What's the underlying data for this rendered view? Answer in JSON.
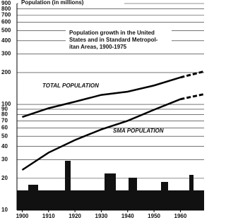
{
  "chart_data": {
    "type": "line",
    "y_label": "Population (in millions)",
    "annotation": [
      "Population growth in the United",
      "States and in Standard Metropol-",
      "itan Areas, 1900-1975"
    ],
    "x": [
      1900,
      1910,
      1920,
      1930,
      1940,
      1950,
      1960,
      1969
    ],
    "series": [
      {
        "name": "TOTAL POPULATION",
        "color": "#000",
        "dash": false,
        "values": [
          76,
          92,
          106,
          123,
          132,
          151,
          180,
          null
        ]
      },
      {
        "name": "SMA POPULATION",
        "color": "#000",
        "dash": false,
        "values": [
          24,
          35,
          46,
          58,
          70,
          89,
          112,
          null
        ]
      },
      {
        "color": "#000",
        "dash": true,
        "values": [
          null,
          null,
          null,
          null,
          null,
          null,
          180,
          205
        ]
      },
      {
        "color": "#000",
        "dash": true,
        "values": [
          null,
          null,
          null,
          null,
          null,
          null,
          112,
          125
        ]
      }
    ],
    "log_scale": true,
    "grid": true,
    "xlim": [
      1898,
      1969
    ],
    "xticks": [
      1900,
      1910,
      1920,
      1930,
      1940,
      1950,
      1960
    ],
    "ylim": [
      10,
      900
    ],
    "yticks": [
      10,
      20,
      30,
      40,
      50,
      60,
      70,
      80,
      90,
      100,
      200,
      300,
      400,
      500,
      600,
      700,
      800,
      900
    ]
  }
}
